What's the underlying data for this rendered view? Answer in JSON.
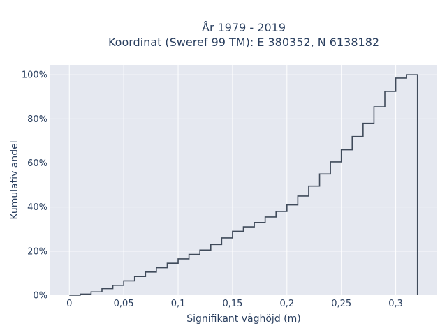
{
  "chart_data": {
    "type": "line",
    "subtype": "cumulative step",
    "title_lines": [
      "År 1979 - 2019",
      "Koordinat (Sweref 99 TM): E 380352, N 6138182"
    ],
    "xlabel": "Signifikant våghöjd (m)",
    "ylabel": "Kumulativ andel",
    "xlim": [
      -0.0175,
      0.3375
    ],
    "ylim": [
      0,
      1.045
    ],
    "x_ticks": [
      0,
      0.05,
      0.1,
      0.15,
      0.2,
      0.25,
      0.3
    ],
    "x_tick_labels": [
      "0",
      "0,05",
      "0,1",
      "0,15",
      "0,2",
      "0,25",
      "0,3"
    ],
    "y_ticks": [
      0,
      0.2,
      0.4,
      0.6,
      0.8,
      1.0
    ],
    "y_tick_labels": [
      "0%",
      "20%",
      "40%",
      "60%",
      "80%",
      "100%"
    ],
    "grid": true,
    "line_color": "#3f4a5a",
    "plot_bg": "#e5e8f0",
    "series": [
      {
        "x": [
          0,
          0.01,
          0.02,
          0.03,
          0.04,
          0.05,
          0.06,
          0.07,
          0.08,
          0.09,
          0.1,
          0.11,
          0.12,
          0.13,
          0.14,
          0.15,
          0.16,
          0.17,
          0.18,
          0.19,
          0.2,
          0.21,
          0.22,
          0.23,
          0.24,
          0.25,
          0.26,
          0.27,
          0.28,
          0.29,
          0.3,
          0.31,
          0.32
        ],
        "y": [
          0,
          0.005,
          0.015,
          0.03,
          0.045,
          0.065,
          0.085,
          0.105,
          0.125,
          0.145,
          0.165,
          0.185,
          0.205,
          0.23,
          0.26,
          0.29,
          0.31,
          0.33,
          0.355,
          0.38,
          0.41,
          0.45,
          0.495,
          0.55,
          0.605,
          0.66,
          0.72,
          0.78,
          0.855,
          0.925,
          0.985,
          1.0,
          0
        ]
      }
    ]
  }
}
